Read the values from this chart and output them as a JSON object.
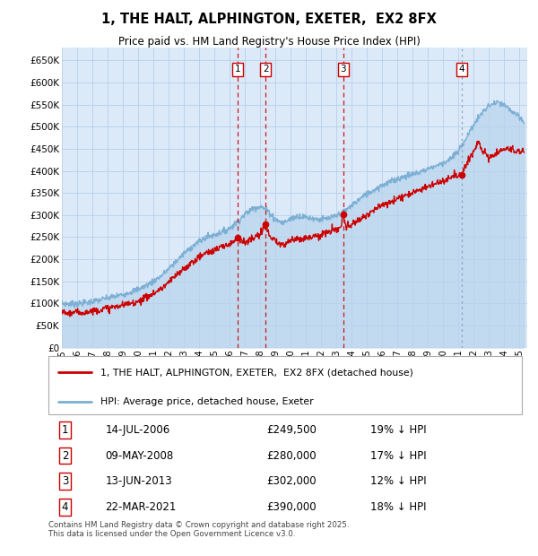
{
  "title": "1, THE HALT, ALPHINGTON, EXETER,  EX2 8FX",
  "subtitle": "Price paid vs. HM Land Registry's House Price Index (HPI)",
  "background_color": "#ffffff",
  "plot_bg_color": "#dce9f8",
  "grid_color": "#b8cfe8",
  "hpi_color": "#7bafd4",
  "hpi_fill_color": "#b8d4ee",
  "property_color": "#cc0000",
  "sale4_line_color": "#8899bb",
  "ylim": [
    0,
    680000
  ],
  "yticks": [
    0,
    50000,
    100000,
    150000,
    200000,
    250000,
    300000,
    350000,
    400000,
    450000,
    500000,
    550000,
    600000,
    650000
  ],
  "xlim_start": 1995.0,
  "xlim_end": 2025.5,
  "sale_dates": [
    2006.535,
    2008.356,
    2013.44,
    2021.22
  ],
  "sale_prices": [
    249500,
    280000,
    302000,
    390000
  ],
  "sale_labels": [
    "1",
    "2",
    "3",
    "4"
  ],
  "sale_line_colors": [
    "#cc0000",
    "#cc0000",
    "#cc0000",
    "#8899bb"
  ],
  "sale_line_styles": [
    "--",
    "--",
    "--",
    ":"
  ],
  "sale_info": [
    {
      "label": "1",
      "date": "14-JUL-2006",
      "price": "£249,500",
      "pct": "19% ↓ HPI"
    },
    {
      "label": "2",
      "date": "09-MAY-2008",
      "price": "£280,000",
      "pct": "17% ↓ HPI"
    },
    {
      "label": "3",
      "date": "13-JUN-2013",
      "price": "£302,000",
      "pct": "12% ↓ HPI"
    },
    {
      "label": "4",
      "date": "22-MAR-2021",
      "price": "£390,000",
      "pct": "18% ↓ HPI"
    }
  ],
  "legend_property": "1, THE HALT, ALPHINGTON, EXETER,  EX2 8FX (detached house)",
  "legend_hpi": "HPI: Average price, detached house, Exeter",
  "footnote": "Contains HM Land Registry data © Crown copyright and database right 2025.\nThis data is licensed under the Open Government Licence v3.0.",
  "hpi_anchors": [
    [
      1995.0,
      100000
    ],
    [
      1995.5,
      99000
    ],
    [
      1996.0,
      99500
    ],
    [
      1996.5,
      101000
    ],
    [
      1997.0,
      104000
    ],
    [
      1997.5,
      108000
    ],
    [
      1998.0,
      112000
    ],
    [
      1998.5,
      116000
    ],
    [
      1999.0,
      120000
    ],
    [
      1999.5,
      126000
    ],
    [
      2000.0,
      132000
    ],
    [
      2000.5,
      140000
    ],
    [
      2001.0,
      150000
    ],
    [
      2001.5,
      162000
    ],
    [
      2002.0,
      178000
    ],
    [
      2002.5,
      196000
    ],
    [
      2003.0,
      213000
    ],
    [
      2003.5,
      228000
    ],
    [
      2004.0,
      240000
    ],
    [
      2004.5,
      250000
    ],
    [
      2005.0,
      255000
    ],
    [
      2005.5,
      262000
    ],
    [
      2006.0,
      270000
    ],
    [
      2006.5,
      285000
    ],
    [
      2007.0,
      302000
    ],
    [
      2007.5,
      315000
    ],
    [
      2008.0,
      320000
    ],
    [
      2008.5,
      310000
    ],
    [
      2009.0,
      290000
    ],
    [
      2009.5,
      282000
    ],
    [
      2010.0,
      292000
    ],
    [
      2010.5,
      298000
    ],
    [
      2011.0,
      295000
    ],
    [
      2011.5,
      292000
    ],
    [
      2012.0,
      290000
    ],
    [
      2012.5,
      292000
    ],
    [
      2013.0,
      298000
    ],
    [
      2013.5,
      308000
    ],
    [
      2014.0,
      322000
    ],
    [
      2014.5,
      336000
    ],
    [
      2015.0,
      348000
    ],
    [
      2015.5,
      358000
    ],
    [
      2016.0,
      368000
    ],
    [
      2016.5,
      375000
    ],
    [
      2017.0,
      382000
    ],
    [
      2017.5,
      388000
    ],
    [
      2018.0,
      392000
    ],
    [
      2018.5,
      398000
    ],
    [
      2019.0,
      405000
    ],
    [
      2019.5,
      412000
    ],
    [
      2020.0,
      418000
    ],
    [
      2020.5,
      428000
    ],
    [
      2021.0,
      445000
    ],
    [
      2021.5,
      475000
    ],
    [
      2022.0,
      505000
    ],
    [
      2022.5,
      530000
    ],
    [
      2023.0,
      548000
    ],
    [
      2023.5,
      555000
    ],
    [
      2024.0,
      548000
    ],
    [
      2024.5,
      535000
    ],
    [
      2025.0,
      520000
    ],
    [
      2025.3,
      510000
    ]
  ],
  "prop_anchors": [
    [
      1995.0,
      80000
    ],
    [
      1995.5,
      78000
    ],
    [
      1996.0,
      79000
    ],
    [
      1996.5,
      80000
    ],
    [
      1997.0,
      83000
    ],
    [
      1997.5,
      86000
    ],
    [
      1998.0,
      89000
    ],
    [
      1998.5,
      92000
    ],
    [
      1999.0,
      96000
    ],
    [
      1999.5,
      100000
    ],
    [
      2000.0,
      105000
    ],
    [
      2000.5,
      113000
    ],
    [
      2001.0,
      122000
    ],
    [
      2001.5,
      133000
    ],
    [
      2002.0,
      147000
    ],
    [
      2002.5,
      163000
    ],
    [
      2003.0,
      178000
    ],
    [
      2003.5,
      192000
    ],
    [
      2004.0,
      205000
    ],
    [
      2004.5,
      215000
    ],
    [
      2005.0,
      220000
    ],
    [
      2005.5,
      228000
    ],
    [
      2006.0,
      235000
    ],
    [
      2006.3,
      242000
    ],
    [
      2006.535,
      249500
    ],
    [
      2006.7,
      244000
    ],
    [
      2007.0,
      238000
    ],
    [
      2007.3,
      242000
    ],
    [
      2007.6,
      248000
    ],
    [
      2008.0,
      255000
    ],
    [
      2008.356,
      280000
    ],
    [
      2008.6,
      252000
    ],
    [
      2009.0,
      238000
    ],
    [
      2009.5,
      232000
    ],
    [
      2010.0,
      242000
    ],
    [
      2010.5,
      248000
    ],
    [
      2011.0,
      248000
    ],
    [
      2011.5,
      252000
    ],
    [
      2012.0,
      255000
    ],
    [
      2012.5,
      262000
    ],
    [
      2013.0,
      268000
    ],
    [
      2013.3,
      272000
    ],
    [
      2013.44,
      302000
    ],
    [
      2013.6,
      275000
    ],
    [
      2014.0,
      278000
    ],
    [
      2014.5,
      290000
    ],
    [
      2015.0,
      302000
    ],
    [
      2015.5,
      312000
    ],
    [
      2016.0,
      322000
    ],
    [
      2016.5,
      330000
    ],
    [
      2017.0,
      338000
    ],
    [
      2017.5,
      345000
    ],
    [
      2018.0,
      352000
    ],
    [
      2018.5,
      358000
    ],
    [
      2019.0,
      365000
    ],
    [
      2019.5,
      372000
    ],
    [
      2020.0,
      378000
    ],
    [
      2020.5,
      385000
    ],
    [
      2021.0,
      392000
    ],
    [
      2021.22,
      390000
    ],
    [
      2021.5,
      415000
    ],
    [
      2022.0,
      445000
    ],
    [
      2022.3,
      468000
    ],
    [
      2022.6,
      445000
    ],
    [
      2023.0,
      430000
    ],
    [
      2023.5,
      440000
    ],
    [
      2024.0,
      450000
    ],
    [
      2024.5,
      448000
    ],
    [
      2025.0,
      445000
    ],
    [
      2025.3,
      443000
    ]
  ]
}
